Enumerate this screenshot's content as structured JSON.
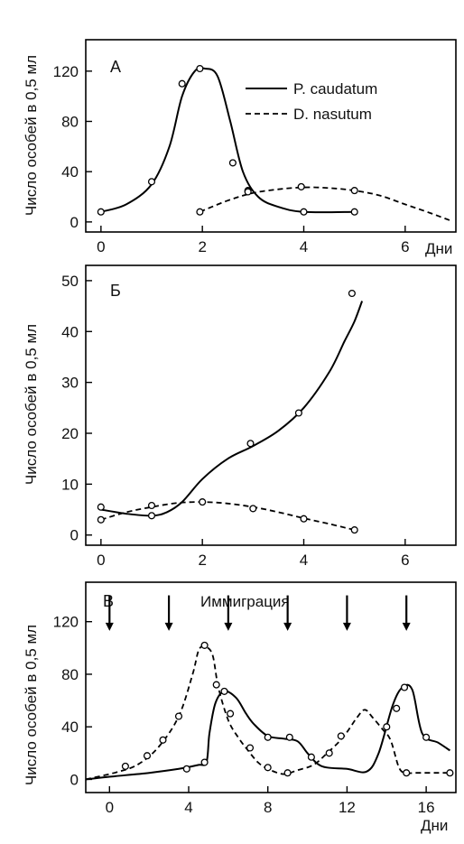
{
  "colors": {
    "line": "#000000",
    "background": "#ffffff"
  },
  "chart_data": [
    {
      "type": "line",
      "panel_label": "А",
      "ylabel": "Число особей в 0,5 мл",
      "xlabel": "Дни",
      "xlim": [
        -0.3,
        7
      ],
      "ylim": [
        -8,
        145
      ],
      "xticks": [
        0,
        2,
        4,
        6
      ],
      "yticks": [
        0,
        40,
        80,
        120
      ],
      "legend_position": "top-right",
      "series": [
        {
          "name": "P. caudatum",
          "style": "solid",
          "curve": [
            [
              0,
              8
            ],
            [
              0.5,
              14
            ],
            [
              1,
              30
            ],
            [
              1.35,
              60
            ],
            [
              1.6,
              100
            ],
            [
              1.85,
              120
            ],
            [
              2.05,
              122
            ],
            [
              2.3,
              116
            ],
            [
              2.55,
              80
            ],
            [
              2.8,
              40
            ],
            [
              3.1,
              20
            ],
            [
              3.5,
              12
            ],
            [
              4,
              8
            ],
            [
              5,
              8
            ]
          ],
          "points": [
            [
              0,
              8
            ],
            [
              1,
              32
            ],
            [
              1.6,
              110
            ],
            [
              1.95,
              122
            ],
            [
              2.6,
              47
            ],
            [
              2.9,
              25
            ],
            [
              4,
              8
            ],
            [
              5,
              8
            ]
          ]
        },
        {
          "name": "D. nasutum",
          "style": "dashed",
          "curve": [
            [
              1.95,
              8
            ],
            [
              2.5,
              17
            ],
            [
              3,
              23
            ],
            [
              3.5,
              26
            ],
            [
              4,
              27.5
            ],
            [
              4.5,
              27
            ],
            [
              5,
              25
            ],
            [
              5.5,
              21
            ],
            [
              6,
              14
            ],
            [
              6.5,
              7
            ],
            [
              6.9,
              1
            ]
          ],
          "points": [
            [
              1.95,
              8
            ],
            [
              2.9,
              24
            ],
            [
              3.95,
              28
            ],
            [
              5,
              25
            ]
          ]
        }
      ]
    },
    {
      "type": "line",
      "panel_label": "Б",
      "ylabel": "Число особей в 0,5 мл",
      "xlabel": "",
      "xlim": [
        -0.3,
        7
      ],
      "ylim": [
        -2,
        53
      ],
      "xticks": [
        0,
        2,
        4,
        6
      ],
      "yticks": [
        0,
        10,
        20,
        30,
        40,
        50
      ],
      "series": [
        {
          "name": "P. caudatum",
          "style": "solid",
          "curve": [
            [
              0,
              5
            ],
            [
              0.5,
              4.2
            ],
            [
              1,
              3.8
            ],
            [
              1.3,
              4.5
            ],
            [
              1.6,
              6.5
            ],
            [
              2,
              11
            ],
            [
              2.5,
              15
            ],
            [
              3,
              17.5
            ],
            [
              3.5,
              20.5
            ],
            [
              4,
              25
            ],
            [
              4.5,
              32
            ],
            [
              4.8,
              38
            ],
            [
              5,
              42
            ],
            [
              5.15,
              46
            ]
          ],
          "points": [
            [
              0,
              5.5
            ],
            [
              1,
              3.8
            ],
            [
              2.95,
              18
            ],
            [
              3.9,
              24
            ],
            [
              4.95,
              47.5
            ]
          ]
        },
        {
          "name": "D. nasutum",
          "style": "dashed",
          "curve": [
            [
              0,
              3
            ],
            [
              0.5,
              4.5
            ],
            [
              1,
              5.5
            ],
            [
              1.5,
              6.3
            ],
            [
              2,
              6.5
            ],
            [
              2.5,
              6.2
            ],
            [
              3,
              5.5
            ],
            [
              3.5,
              4.5
            ],
            [
              4,
              3.3
            ],
            [
              4.5,
              2.2
            ],
            [
              5,
              1
            ]
          ],
          "points": [
            [
              0,
              3
            ],
            [
              1,
              5.8
            ],
            [
              2,
              6.5
            ],
            [
              3,
              5.2
            ],
            [
              4,
              3.2
            ],
            [
              5,
              1
            ]
          ]
        }
      ]
    },
    {
      "type": "line",
      "panel_label": "В",
      "title": "Иммиграция",
      "ylabel": "Число особей в 0,5 мл",
      "xlabel": "Дни",
      "xlim": [
        -1.2,
        17.5
      ],
      "ylim": [
        -10,
        150
      ],
      "xticks": [
        0,
        4,
        8,
        12,
        16
      ],
      "yticks": [
        0,
        40,
        80,
        120
      ],
      "arrows_x": [
        0,
        3,
        6,
        9,
        12,
        15
      ],
      "series": [
        {
          "name": "P. caudatum",
          "style": "solid",
          "curve": [
            [
              -1.2,
              0
            ],
            [
              0,
              2
            ],
            [
              2,
              5
            ],
            [
              3.5,
              8
            ],
            [
              4.5,
              11
            ],
            [
              4.9,
              13
            ],
            [
              5.05,
              35
            ],
            [
              5.35,
              58
            ],
            [
              5.8,
              67
            ],
            [
              6.4,
              62
            ],
            [
              6.9,
              50
            ],
            [
              7.3,
              42
            ],
            [
              8,
              33
            ],
            [
              8.8,
              31
            ],
            [
              9.5,
              29
            ],
            [
              10,
              20
            ],
            [
              10.5,
              12
            ],
            [
              11,
              9
            ],
            [
              12,
              8
            ],
            [
              13,
              6
            ],
            [
              13.6,
              20
            ],
            [
              14.3,
              56
            ],
            [
              14.8,
              70
            ],
            [
              15.3,
              68
            ],
            [
              15.8,
              35
            ],
            [
              16.6,
              28
            ],
            [
              17.2,
              22
            ]
          ],
          "points": [
            [
              3.9,
              8
            ],
            [
              4.8,
              13
            ],
            [
              5.8,
              67
            ],
            [
              8,
              32
            ],
            [
              9.1,
              32
            ],
            [
              10.2,
              17
            ],
            [
              14.5,
              54
            ],
            [
              14.9,
              70
            ],
            [
              16,
              32
            ]
          ]
        },
        {
          "name": "D. nasutum",
          "style": "dashed",
          "curve": [
            [
              -1.2,
              0
            ],
            [
              0.5,
              6
            ],
            [
              1.5,
              12
            ],
            [
              2.5,
              25
            ],
            [
              3.5,
              48
            ],
            [
              4.2,
              80
            ],
            [
              4.5,
              98
            ],
            [
              4.8,
              101
            ],
            [
              5.2,
              95
            ],
            [
              5.5,
              70
            ],
            [
              6,
              45
            ],
            [
              6.5,
              32
            ],
            [
              7,
              22
            ],
            [
              7.5,
              13
            ],
            [
              8,
              8
            ],
            [
              8.8,
              4
            ],
            [
              9.5,
              7
            ],
            [
              10.3,
              11
            ],
            [
              11,
              20
            ],
            [
              11.8,
              32
            ],
            [
              12.5,
              47
            ],
            [
              12.9,
              53
            ],
            [
              13.3,
              47
            ],
            [
              13.8,
              38
            ],
            [
              14.2,
              30
            ],
            [
              14.6,
              10
            ],
            [
              14.9,
              5
            ],
            [
              15.5,
              5
            ],
            [
              16.5,
              5
            ],
            [
              17.2,
              5
            ]
          ],
          "points": [
            [
              0.8,
              10
            ],
            [
              1.9,
              18
            ],
            [
              2.7,
              30
            ],
            [
              3.5,
              48
            ],
            [
              4.8,
              102
            ],
            [
              5.4,
              72
            ],
            [
              6.1,
              50
            ],
            [
              7.1,
              24
            ],
            [
              8,
              9
            ],
            [
              9,
              5
            ],
            [
              11.1,
              20
            ],
            [
              11.7,
              33
            ],
            [
              14,
              40
            ],
            [
              15,
              5
            ],
            [
              17.2,
              5
            ]
          ]
        }
      ]
    }
  ]
}
